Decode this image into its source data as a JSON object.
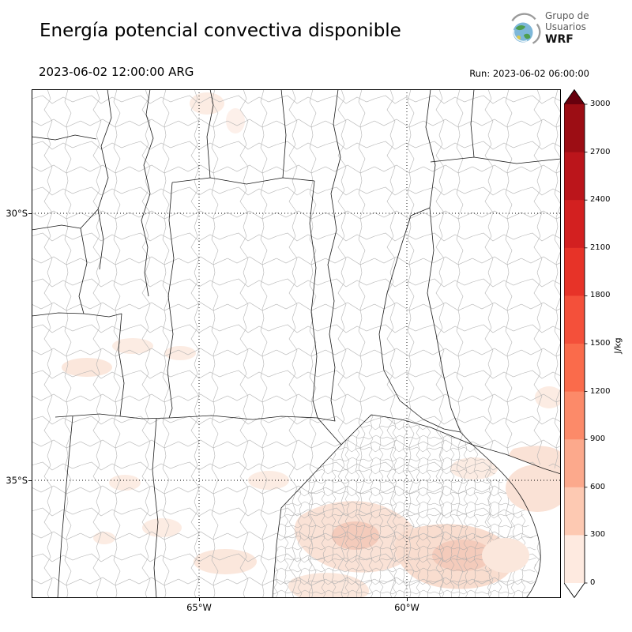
{
  "header": {
    "title": "Energía potencial convectiva disponible",
    "logo": {
      "line1": "Grupo de",
      "line2": "Usuarios",
      "line3": "WRF"
    }
  },
  "subheader": {
    "valid_time": "2023-06-02 12:00:00 ARG",
    "run_time": "Run: 2023-06-02 06:00:00"
  },
  "map": {
    "y_ticks": [
      "30°S",
      "35°S"
    ],
    "x_ticks": [
      "65°W",
      "60°W"
    ]
  },
  "colorbar": {
    "unit": "J/kg",
    "ticks": [
      "3000",
      "2700",
      "2400",
      "2100",
      "1800",
      "1500",
      "1200",
      "900",
      "600",
      "300",
      "0"
    ],
    "over_color": "#67000d",
    "under_color": "#ffffff",
    "segment_colors_top_to_bottom": [
      "#9c0d14",
      "#bb151b",
      "#d32020",
      "#e73328",
      "#f4503a",
      "#fa6b4b",
      "#fc8a69",
      "#fca98c",
      "#fdc9b2",
      "#feeae0"
    ],
    "shading_colors_on_map": [
      "#f4cbbb",
      "#f9ddcf",
      "#fae2d6",
      "#fbe7dc",
      "#fcece3",
      "#fdf0ea"
    ]
  }
}
